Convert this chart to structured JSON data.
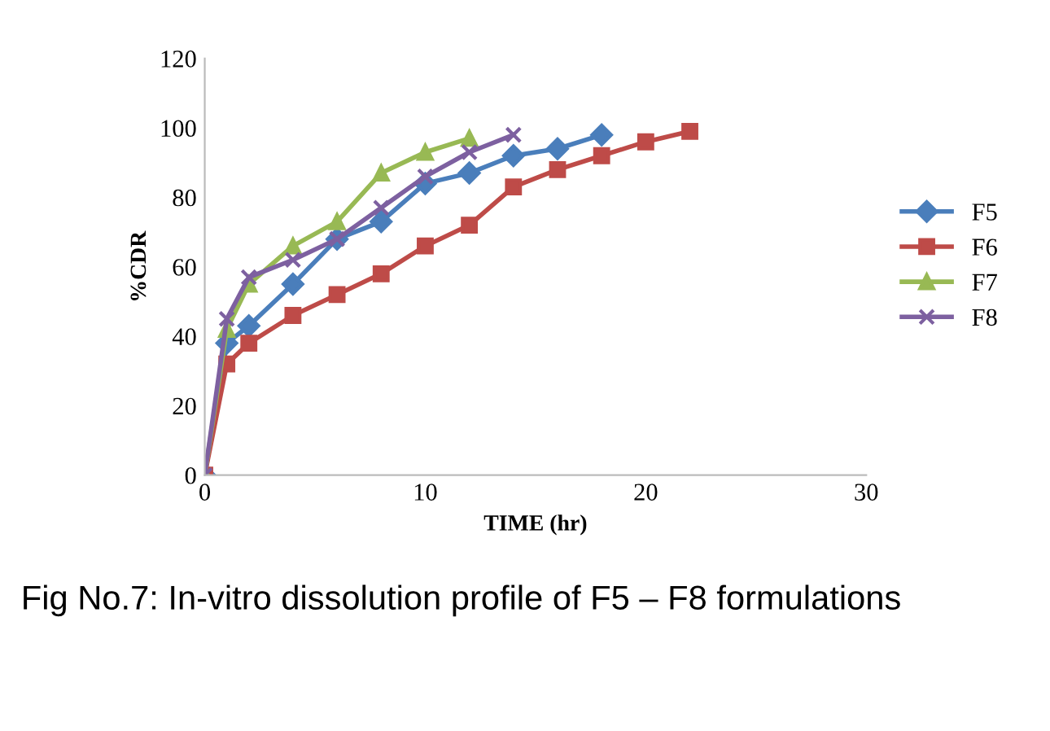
{
  "chart_data": {
    "type": "line",
    "xlabel": "TIME (hr)",
    "ylabel": "%CDR",
    "xlim": [
      0,
      30
    ],
    "xticks": [
      0,
      10,
      20,
      30
    ],
    "ylim": [
      0,
      120
    ],
    "yticks": [
      0,
      20,
      40,
      60,
      80,
      100,
      120
    ],
    "grid": false,
    "legend": "right",
    "series": [
      {
        "name": "F5",
        "color": "#4a7ebb",
        "marker": "diamond",
        "x": [
          0,
          1,
          2,
          4,
          6,
          8,
          10,
          12,
          14,
          16,
          18
        ],
        "values": [
          0,
          38,
          43,
          55,
          68,
          73,
          84,
          87,
          92,
          94,
          98
        ]
      },
      {
        "name": "F6",
        "color": "#be4b48",
        "marker": "square",
        "x": [
          0,
          1,
          2,
          4,
          6,
          8,
          10,
          12,
          14,
          16,
          18,
          20,
          22
        ],
        "values": [
          0,
          32,
          38,
          46,
          52,
          58,
          66,
          72,
          83,
          88,
          92,
          96,
          99
        ]
      },
      {
        "name": "F7",
        "color": "#98b954",
        "marker": "triangle",
        "x": [
          0,
          1,
          2,
          4,
          6,
          8,
          10,
          12
        ],
        "values": [
          0,
          42,
          55,
          66,
          73,
          87,
          93,
          97
        ]
      },
      {
        "name": "F8",
        "color": "#7d60a0",
        "marker": "cross",
        "x": [
          0,
          1,
          2,
          4,
          6,
          8,
          10,
          12,
          14
        ],
        "values": [
          0,
          45,
          57,
          62,
          68,
          77,
          86,
          93,
          98
        ]
      }
    ],
    "annotations": [
      "Fig No.7: In-vitro dissolution profile of F5 – F8 formulations"
    ]
  }
}
